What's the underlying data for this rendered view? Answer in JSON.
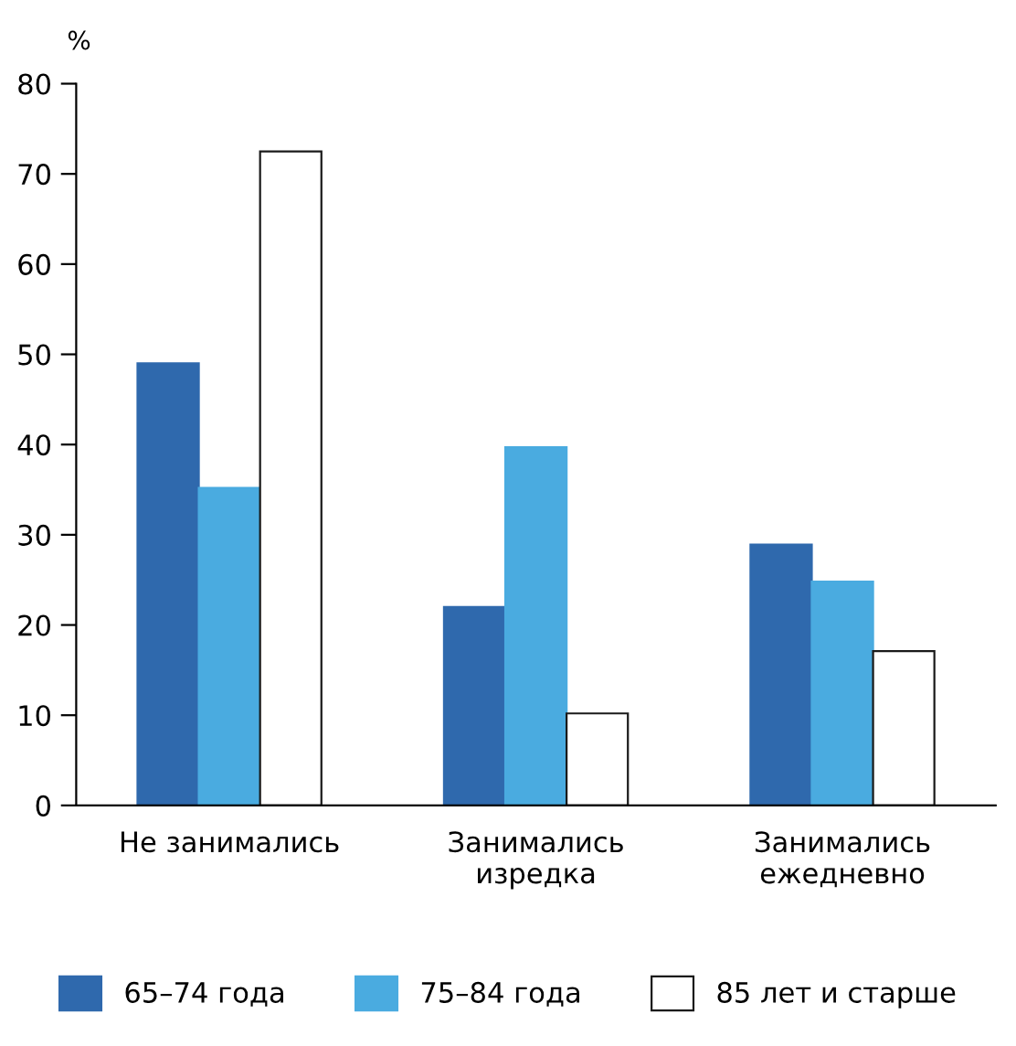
{
  "chart_data": {
    "type": "bar",
    "ylabel": "%",
    "categories": [
      "Не занимались",
      "Занимались\nизредка",
      "Занимались\nежедневно"
    ],
    "series": [
      {
        "name": "65–74 года",
        "color": "#2f69ad",
        "values": [
          49,
          22,
          28.9
        ]
      },
      {
        "name": "75–84 года",
        "color": "#4aabe0",
        "values": [
          35.2,
          39.7,
          24.8
        ]
      },
      {
        "name": "85 лет и старше",
        "color": "#ffffff",
        "values": [
          72.5,
          10.2,
          17.1
        ]
      }
    ],
    "ylim": [
      0,
      80
    ],
    "yticks": [
      0,
      10,
      20,
      30,
      40,
      50,
      60,
      70,
      80
    ],
    "grid": false,
    "legend": "bottom"
  }
}
